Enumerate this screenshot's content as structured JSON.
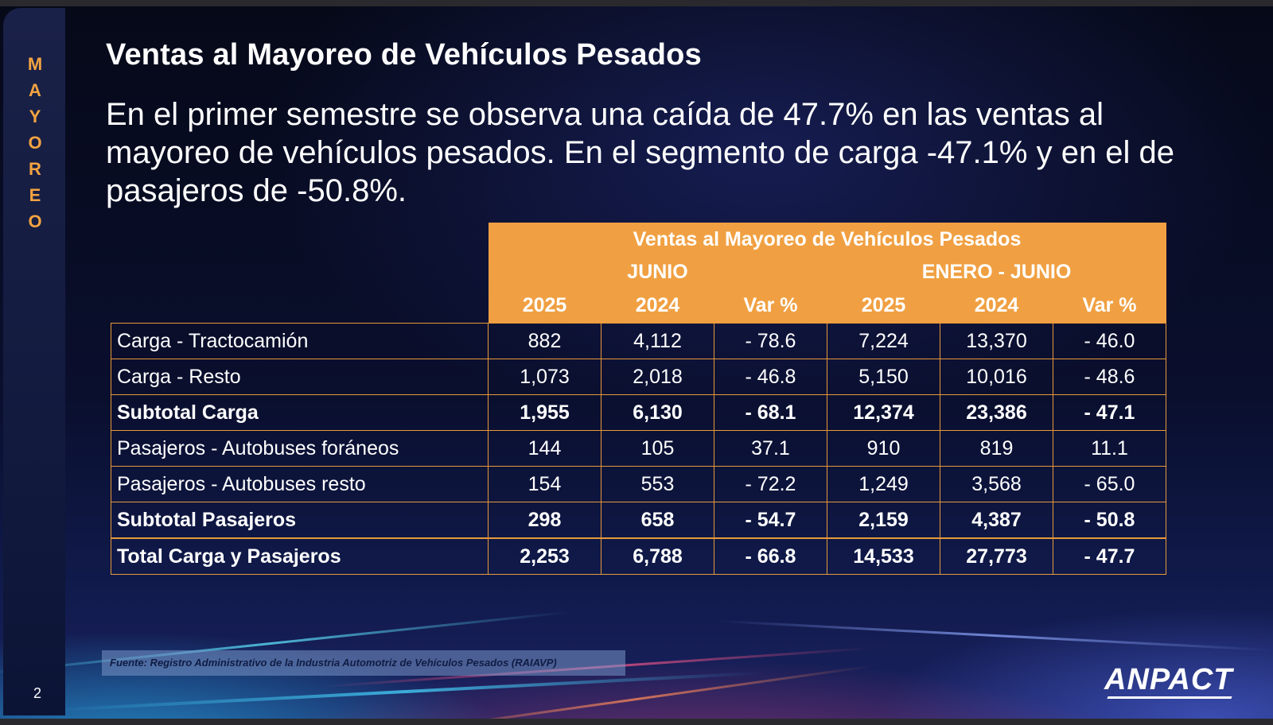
{
  "sidebar": {
    "letters": [
      "M",
      "A",
      "Y",
      "O",
      "R",
      "E",
      "O"
    ]
  },
  "title": "Ventas al Mayoreo de Vehículos Pesados",
  "subtitle": "En el primer semestre se observa una caída de 47.7% en las ventas al mayoreo de vehículos pesados. En el segmento de carga -47.1% y en el de pasajeros de -50.8%.",
  "table": {
    "header_title": "Ventas al Mayoreo de Vehículos Pesados",
    "groups": [
      "JUNIO",
      "ENERO - JUNIO"
    ],
    "columns": [
      "2025",
      "2024",
      "Var %",
      "2025",
      "2024",
      "Var %"
    ],
    "rows": [
      {
        "label": "Carga - Tractocamión",
        "bold": false,
        "values": [
          "882",
          "4,112",
          "- 78.6",
          "7,224",
          "13,370",
          "- 46.0"
        ]
      },
      {
        "label": "Carga - Resto",
        "bold": false,
        "values": [
          "1,073",
          "2,018",
          "- 46.8",
          "5,150",
          "10,016",
          "- 48.6"
        ]
      },
      {
        "label": "Subtotal Carga",
        "bold": true,
        "values": [
          "1,955",
          "6,130",
          "- 68.1",
          "12,374",
          "23,386",
          "- 47.1"
        ]
      },
      {
        "label": "Pasajeros - Autobuses foráneos",
        "bold": false,
        "values": [
          "144",
          "105",
          "37.1",
          "910",
          "819",
          "11.1"
        ]
      },
      {
        "label": "Pasajeros - Autobuses resto",
        "bold": false,
        "values": [
          "154",
          "553",
          "- 72.2",
          "1,249",
          "3,568",
          "- 65.0"
        ]
      },
      {
        "label": "Subtotal Pasajeros",
        "bold": true,
        "values": [
          "298",
          "658",
          "- 54.7",
          "2,159",
          "4,387",
          "- 50.8"
        ]
      },
      {
        "label": "Total Carga y Pasajeros",
        "bold": true,
        "values": [
          "2,253",
          "6,788",
          "- 66.8",
          "14,533",
          "27,773",
          "- 47.7"
        ]
      }
    ]
  },
  "source": "Fuente: Registro Administrativo de la Industria Automotriz de Vehículos Pesados (RAIAVP)",
  "page_number": "2",
  "logo": "ANPACT",
  "colors": {
    "accent": "#f0a042",
    "background": "#0a0f2e",
    "text": "#ffffff"
  }
}
